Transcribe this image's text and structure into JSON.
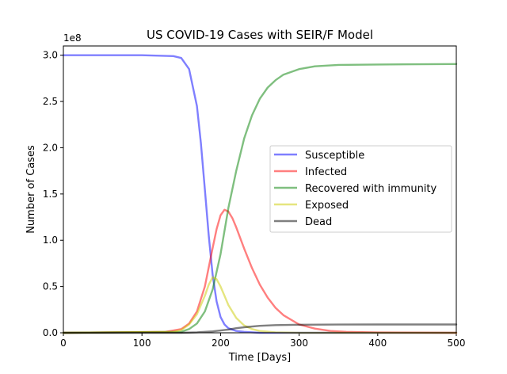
{
  "chart_data": {
    "type": "line",
    "title": "US COVID-19 Cases with SEIR/F Model",
    "xlabel": "Time [Days]",
    "ylabel": "Number of Cases",
    "y_offset_label": "1e8",
    "xlim": [
      0,
      500
    ],
    "ylim": [
      0,
      3.1
    ],
    "x_ticks": [
      0,
      100,
      200,
      300,
      400,
      500
    ],
    "y_ticks": [
      0.0,
      0.5,
      1.0,
      1.5,
      2.0,
      2.5,
      3.0
    ],
    "y_tick_labels": [
      "0.0",
      "0.5",
      "1.0",
      "1.5",
      "2.0",
      "2.5",
      "3.0"
    ],
    "legend_position": "center-right",
    "series": [
      {
        "name": "Susceptible",
        "color": "#0000ff",
        "x": [
          0,
          100,
          140,
          150,
          160,
          170,
          175,
          180,
          185,
          190,
          195,
          200,
          205,
          210,
          220,
          230,
          250,
          500
        ],
        "values": [
          3.0,
          3.0,
          2.99,
          2.97,
          2.85,
          2.45,
          2.05,
          1.55,
          1.05,
          0.62,
          0.34,
          0.17,
          0.09,
          0.05,
          0.02,
          0.01,
          0.0,
          0.0
        ]
      },
      {
        "name": "Infected",
        "color": "#ff0000",
        "x": [
          0,
          130,
          150,
          160,
          170,
          180,
          190,
          195,
          200,
          205,
          210,
          215,
          220,
          230,
          240,
          250,
          260,
          270,
          280,
          300,
          320,
          340,
          360,
          400,
          500
        ],
        "values": [
          0.0,
          0.01,
          0.04,
          0.1,
          0.23,
          0.5,
          0.92,
          1.12,
          1.27,
          1.33,
          1.31,
          1.24,
          1.14,
          0.91,
          0.7,
          0.52,
          0.38,
          0.27,
          0.19,
          0.09,
          0.045,
          0.02,
          0.01,
          0.003,
          0.0
        ]
      },
      {
        "name": "Recovered with immunity",
        "color": "#008000",
        "x": [
          0,
          150,
          160,
          170,
          180,
          190,
          200,
          210,
          220,
          230,
          240,
          250,
          260,
          270,
          280,
          300,
          320,
          350,
          400,
          500
        ],
        "values": [
          0.0,
          0.01,
          0.04,
          0.1,
          0.23,
          0.47,
          0.85,
          1.35,
          1.75,
          2.1,
          2.35,
          2.53,
          2.65,
          2.73,
          2.79,
          2.85,
          2.88,
          2.895,
          2.9,
          2.905
        ]
      },
      {
        "name": "Exposed",
        "color": "#cccc00",
        "x": [
          0,
          140,
          150,
          160,
          170,
          180,
          185,
          190,
          195,
          200,
          205,
          210,
          220,
          230,
          240,
          250,
          270,
          300,
          500
        ],
        "values": [
          0.0,
          0.01,
          0.03,
          0.09,
          0.2,
          0.4,
          0.52,
          0.6,
          0.58,
          0.5,
          0.4,
          0.3,
          0.16,
          0.08,
          0.04,
          0.02,
          0.005,
          0.0,
          0.0
        ]
      },
      {
        "name": "Dead",
        "color": "#000000",
        "x": [
          0,
          150,
          170,
          190,
          200,
          210,
          220,
          230,
          250,
          270,
          300,
          350,
          400,
          500
        ],
        "values": [
          0.0,
          0.0,
          0.005,
          0.015,
          0.025,
          0.035,
          0.05,
          0.06,
          0.075,
          0.083,
          0.087,
          0.089,
          0.09,
          0.09
        ]
      }
    ]
  }
}
